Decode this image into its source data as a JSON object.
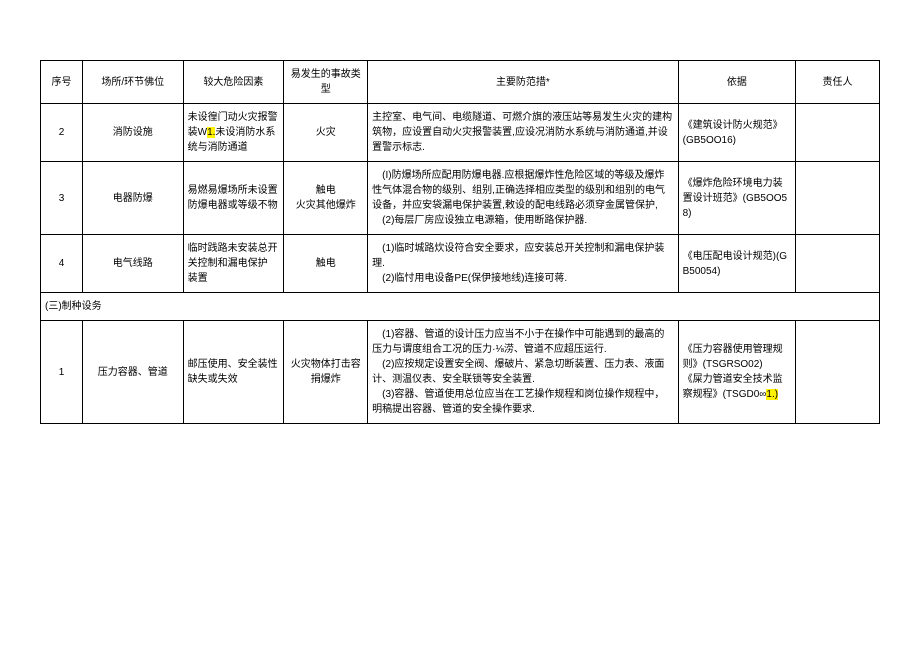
{
  "headers": {
    "seq": "序号",
    "place": "场所/环节佛位",
    "risk": "较大危险因素",
    "type": "易发生的事故类型",
    "measures": "主要防范措*",
    "basis": "依据",
    "responsible": "责任人"
  },
  "rows": {
    "r2": {
      "seq": "2",
      "place": "消防设施",
      "risk_a": "未设徨门动火灾报警装W",
      "risk_hl": "1.",
      "risk_b": "未设消防水系统与消防通道",
      "type": "火灾",
      "measures": "主控室、电气间、电缆隧道、可燃介旗的液压站等易发生火灾的建构筑物，应设置自动火灾报警装置,应设况消防水系统与消防通道,并设置警示标志.",
      "basis": "《建筑设计防火规范》(GB5OO16)"
    },
    "r3": {
      "seq": "3",
      "place": "电器防爆",
      "risk": "易燃易爆场所未设置防爆电器或等级不物",
      "type": "触电\n火灾其他爆炸",
      "measures": "　(I)防爆场所应配用防爆电器.应根据爆炸性危险区域的等级及爆炸性气体混合物的级别、组别,正确选择相应类型的级别和组别的电气设备，并应安袋漏电保护装置,敕设的配电线路必须穿金属管保护,\n　(2)每层厂房应设独立电源箱，使用断路保护器.",
      "basis": "《爆炸危险环境电力装置设计班范》(GB5OO58)"
    },
    "r4": {
      "seq": "4",
      "place": "电气线路",
      "risk": "临时践路未安装总开关控制和漏电保护\n装置",
      "type": "触电",
      "measures": "　(1)临时城路炊设符合安全要求，应安装总开关控制和漏电保护装理.\n　(2)临忖用电设备PE(保伊接地线)连接可蒋.",
      "basis": "《电压配电设计规范)(GB50054)"
    },
    "section": {
      "label": "(三)制种设务"
    },
    "r1b": {
      "seq": "1",
      "place": "压力容器、管道",
      "risk": "邮压使用、安全装性缺失或失效",
      "type": "火灾物体打击容捐爆炸",
      "measures": "　(1)容器、管道的设计压力应当不小于在操作中可能遇到的最高的压力与谓度组合工况的压力·⅛涝、管道不应超压运行.\n　(2)应按规定设置安全阀、爆破片、紧急切断装置、压力表、液面计、测温仪表、安全联锁等安全装置.\n　(3)容器、管道使用总位应当在工艺操作规程和岗位操作规程中，明稿提出容器、管道的安全操作要求.",
      "basis_a": "《压力容器使用管理规则》(TSGRSO02)\n《屎力管道安全技术监察规程》(TSGD0∞",
      "basis_hl": "1.)"
    }
  }
}
